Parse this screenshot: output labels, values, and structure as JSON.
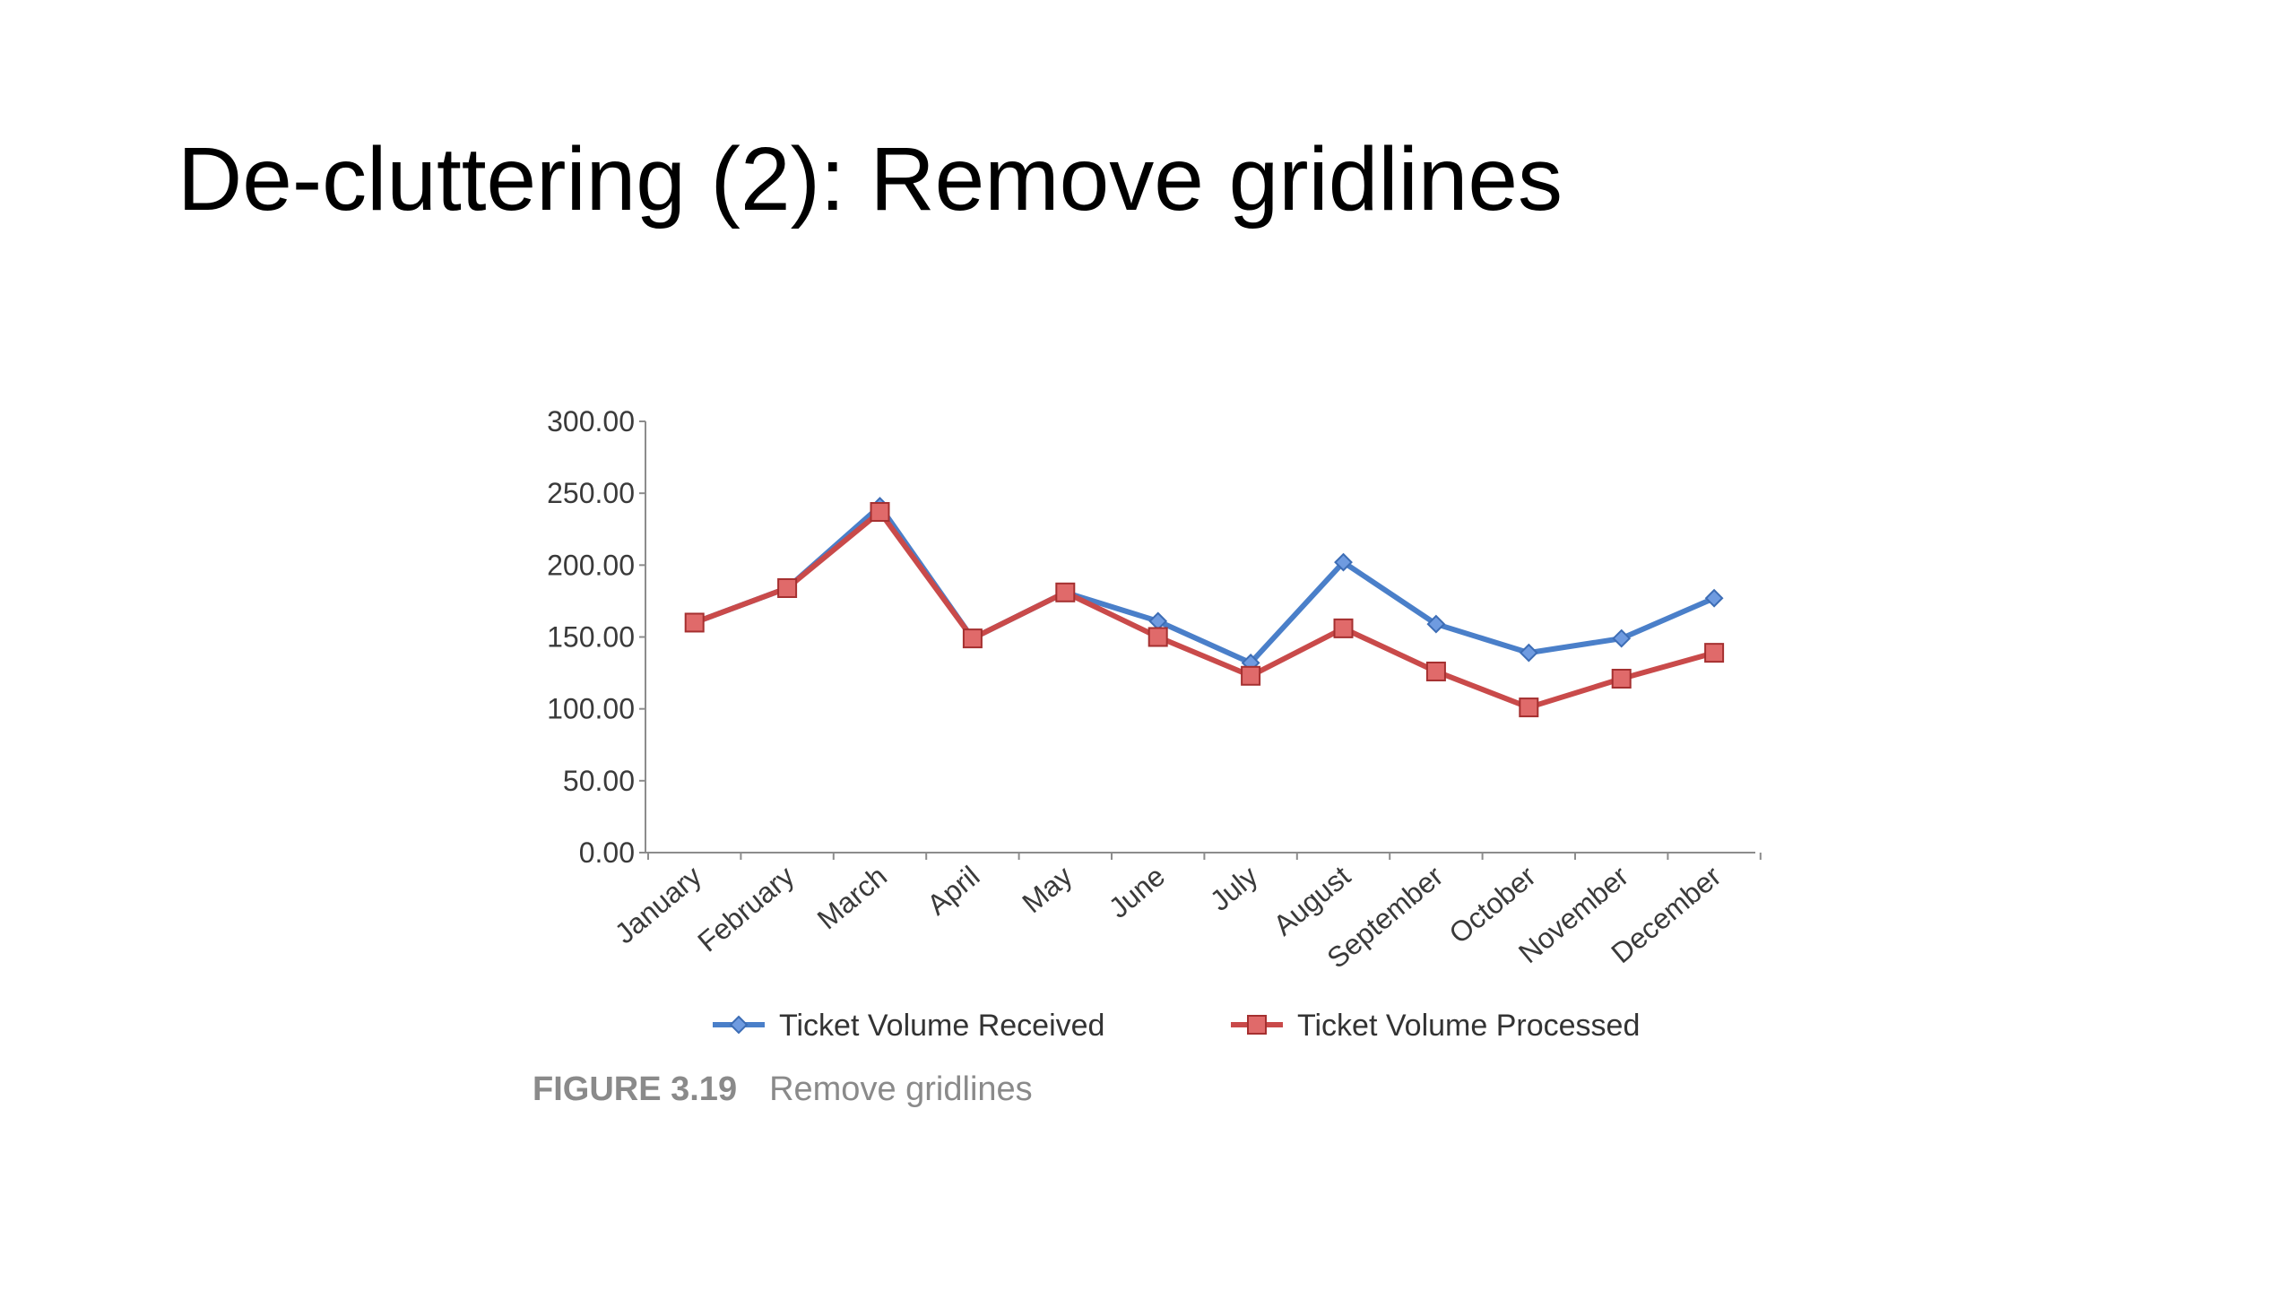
{
  "slide": {
    "title": "De-cluttering (2): Remove gridlines"
  },
  "chart_data": {
    "type": "line",
    "categories": [
      "January",
      "February",
      "March",
      "April",
      "May",
      "June",
      "July",
      "August",
      "September",
      "October",
      "November",
      "December"
    ],
    "series": [
      {
        "name": "Ticket Volume Received",
        "color": "#4a7fc9",
        "marker": "diamond",
        "values": [
          160,
          184,
          241,
          149,
          181,
          161,
          132,
          202,
          159,
          139,
          149,
          177
        ]
      },
      {
        "name": "Ticket Volume Processed",
        "color": "#c94a4a",
        "marker": "square",
        "values": [
          160,
          184,
          237,
          149,
          181,
          150,
          123,
          156,
          126,
          101,
          121,
          139
        ]
      }
    ],
    "ylim": [
      0,
      300
    ],
    "yticks": [
      "0.00",
      "50.00",
      "100.00",
      "150.00",
      "200.00",
      "250.00",
      "300.00"
    ],
    "grid": false,
    "legend": "bottom"
  },
  "figure": {
    "label": "FIGURE 3.19",
    "caption": "Remove gridlines"
  }
}
